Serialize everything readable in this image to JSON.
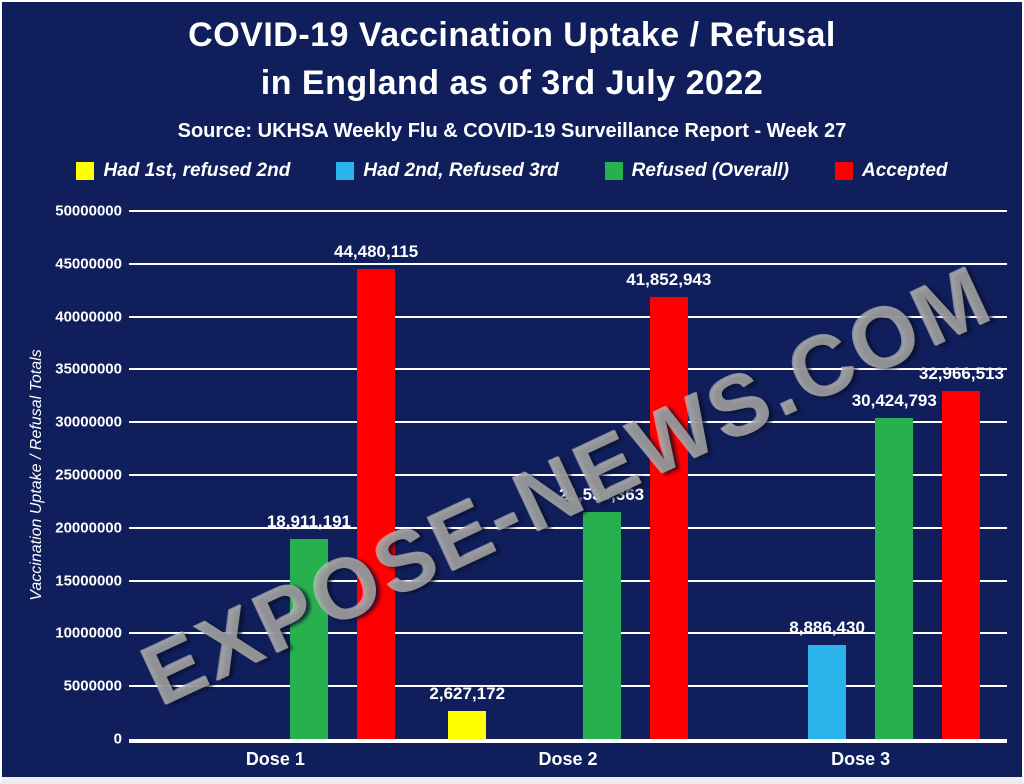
{
  "header": {
    "title_line1": "COVID-19 Vaccination Uptake / Refusal",
    "title_line2": "in England as of 3rd July 2022",
    "source": "Source: UKHSA Weekly Flu & COVID-19 Surveillance Report - Week 27"
  },
  "watermark": "EXPOSE-NEWS.COM",
  "colors": {
    "background": "#101f5c",
    "gridline": "#ffffff",
    "text": "#ffffff",
    "watermark": "#a3a3a3"
  },
  "chart_data": {
    "type": "bar",
    "title": "COVID-19 Vaccination Uptake / Refusal in England as of 3rd July 2022",
    "subtitle": "Source: UKHSA Weekly Flu & COVID-19 Surveillance Report - Week 27",
    "xlabel": "",
    "ylabel": "Vaccination Uptake / Refusal Totals",
    "ylim": [
      0,
      50000000
    ],
    "ytick_step": 5000000,
    "grid": true,
    "legend_position": "top",
    "categories": [
      "Dose 1",
      "Dose 2",
      "Dose 3"
    ],
    "series": [
      {
        "name": "Had 1st, refused 2nd",
        "color": "#ffff00",
        "values": [
          null,
          2627172,
          null
        ]
      },
      {
        "name": "Had 2nd, Refused 3rd",
        "color": "#29b4ec",
        "values": [
          null,
          null,
          8886430
        ]
      },
      {
        "name": "Refused (Overall)",
        "color": "#26b04e",
        "values": [
          18911191,
          21538363,
          30424793
        ]
      },
      {
        "name": "Accepted",
        "color": "#fe0000",
        "values": [
          44480115,
          41852943,
          32966513
        ]
      }
    ]
  }
}
